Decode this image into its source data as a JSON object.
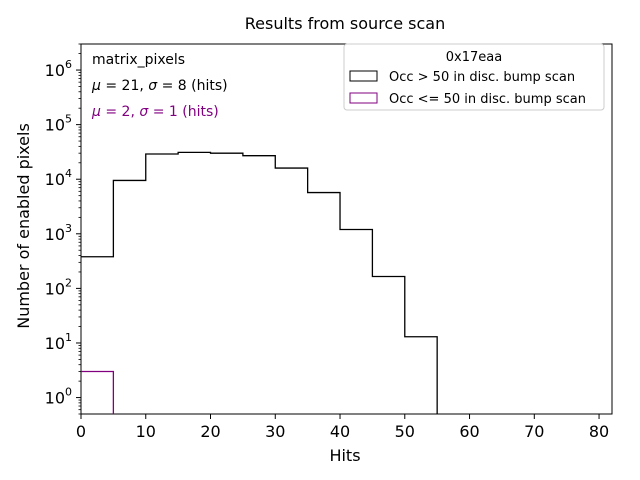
{
  "chart_data": {
    "type": "histogram",
    "title": "Results from source scan",
    "xlabel": "Hits",
    "ylabel": "Number of enabled pixels",
    "xlim": [
      0,
      82
    ],
    "ylim": [
      0.5,
      3000000
    ],
    "yscale": "log",
    "grid": false,
    "x_ticks": [
      0,
      10,
      20,
      30,
      40,
      50,
      60,
      70,
      80
    ],
    "y_tick_exponents": [
      0,
      1,
      2,
      3,
      4,
      5,
      6
    ],
    "y_tick_base": "10",
    "bin_edges": [
      0,
      5,
      10,
      15,
      20,
      25,
      30,
      35,
      40,
      45,
      50,
      55
    ],
    "series": [
      {
        "name": "Occ > 50 in disc. bump scan",
        "color": "#000000",
        "values": [
          380,
          9500,
          29000,
          31000,
          30000,
          27000,
          16000,
          5700,
          1200,
          165,
          13
        ]
      },
      {
        "name": "Occ <= 50 in disc. bump scan",
        "color": "#800080",
        "values": [
          3,
          null,
          null,
          null,
          null,
          null,
          null,
          null,
          null,
          null,
          null
        ]
      }
    ],
    "legend": {
      "title": "0x17eaa",
      "placement": "top-right"
    },
    "annotations": {
      "label": "matrix_pixels",
      "stats": [
        {
          "mu_symbol": "μ",
          "mu": "21",
          "sigma_symbol": "σ",
          "sigma": "8",
          "unit": "(hits)",
          "color": "#000000"
        },
        {
          "mu_symbol": "μ",
          "mu": "2",
          "sigma_symbol": "σ",
          "sigma": "1",
          "unit": "(hits)",
          "color": "#800080"
        }
      ]
    }
  }
}
